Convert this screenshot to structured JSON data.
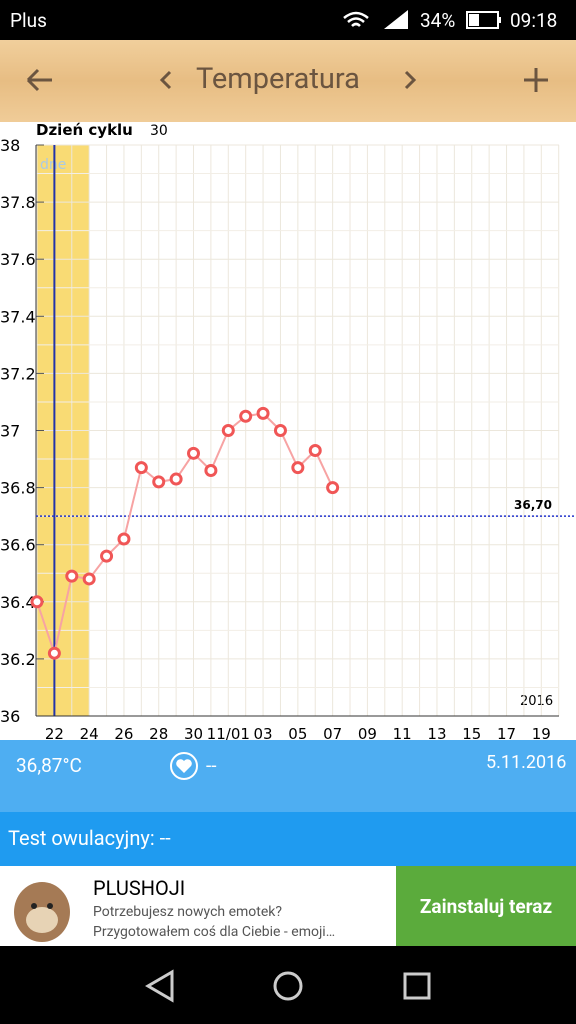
{
  "status_bar": {
    "carrier": "Plus",
    "battery": "34%",
    "time": "09:18"
  },
  "header": {
    "title": "Temperatura"
  },
  "chart_data": {
    "type": "line",
    "axis_header": "Dzień cyklu",
    "cycle_day": "30",
    "faint_label": "dne",
    "year_label": "2016",
    "categories": [
      null,
      "22",
      null,
      "24",
      null,
      "26",
      null,
      "28",
      null,
      "30",
      null,
      "11/01",
      null,
      "03",
      null,
      "05",
      null,
      "07",
      null,
      "09",
      null,
      "11",
      null,
      "13",
      null,
      "15",
      null,
      "17",
      null,
      "19",
      null
    ],
    "values": [
      36.4,
      36.22,
      36.49,
      36.48,
      36.56,
      36.62,
      36.87,
      36.82,
      36.83,
      36.92,
      36.86,
      37.0,
      37.05,
      37.06,
      37.0,
      36.87,
      36.93,
      36.8,
      null,
      null,
      null,
      null,
      null,
      null,
      null,
      null,
      null,
      null,
      null,
      null,
      null
    ],
    "color": "#f7a3a3",
    "marker_color": "#f05656",
    "ylim": [
      36,
      38
    ],
    "yticks": [
      36,
      36.2,
      36.4,
      36.6,
      36.8,
      37,
      37.2,
      37.4,
      37.6,
      37.8,
      38
    ],
    "grid": true,
    "ref_line": {
      "value": 36.7,
      "label": "36,70"
    }
  },
  "info": {
    "temperature": "36,87°C",
    "heart": "--",
    "date": "5.11.2016"
  },
  "ovulation_test": "Test owulacyjny: --",
  "ad": {
    "title": "PLUSHOJI",
    "line1": "Potrzebujesz nowych emotek?",
    "line2": "Przygotowałem coś dla Ciebie - emoji…",
    "button": "Zainstaluj teraz"
  }
}
